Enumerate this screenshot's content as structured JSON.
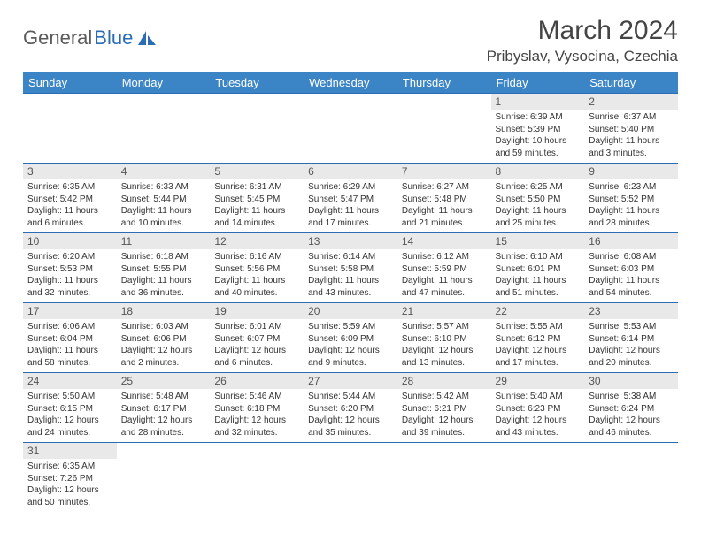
{
  "brand": {
    "text1": "General",
    "text2": "Blue"
  },
  "title": "March 2024",
  "location": "Pribyslav, Vysocina, Czechia",
  "colors": {
    "header_bg": "#3b85c6",
    "header_text": "#ffffff",
    "row_divider": "#2a6db5",
    "daynum_bg": "#e9e9e9",
    "brand_gray": "#5a5a5a",
    "brand_blue": "#2a6db5"
  },
  "dow": [
    "Sunday",
    "Monday",
    "Tuesday",
    "Wednesday",
    "Thursday",
    "Friday",
    "Saturday"
  ],
  "weeks": [
    [
      {
        "blank": true
      },
      {
        "blank": true
      },
      {
        "blank": true
      },
      {
        "blank": true
      },
      {
        "blank": true
      },
      {
        "n": "1",
        "sr": "Sunrise: 6:39 AM",
        "ss": "Sunset: 5:39 PM",
        "dl": "Daylight: 10 hours and 59 minutes."
      },
      {
        "n": "2",
        "sr": "Sunrise: 6:37 AM",
        "ss": "Sunset: 5:40 PM",
        "dl": "Daylight: 11 hours and 3 minutes."
      }
    ],
    [
      {
        "n": "3",
        "sr": "Sunrise: 6:35 AM",
        "ss": "Sunset: 5:42 PM",
        "dl": "Daylight: 11 hours and 6 minutes."
      },
      {
        "n": "4",
        "sr": "Sunrise: 6:33 AM",
        "ss": "Sunset: 5:44 PM",
        "dl": "Daylight: 11 hours and 10 minutes."
      },
      {
        "n": "5",
        "sr": "Sunrise: 6:31 AM",
        "ss": "Sunset: 5:45 PM",
        "dl": "Daylight: 11 hours and 14 minutes."
      },
      {
        "n": "6",
        "sr": "Sunrise: 6:29 AM",
        "ss": "Sunset: 5:47 PM",
        "dl": "Daylight: 11 hours and 17 minutes."
      },
      {
        "n": "7",
        "sr": "Sunrise: 6:27 AM",
        "ss": "Sunset: 5:48 PM",
        "dl": "Daylight: 11 hours and 21 minutes."
      },
      {
        "n": "8",
        "sr": "Sunrise: 6:25 AM",
        "ss": "Sunset: 5:50 PM",
        "dl": "Daylight: 11 hours and 25 minutes."
      },
      {
        "n": "9",
        "sr": "Sunrise: 6:23 AM",
        "ss": "Sunset: 5:52 PM",
        "dl": "Daylight: 11 hours and 28 minutes."
      }
    ],
    [
      {
        "n": "10",
        "sr": "Sunrise: 6:20 AM",
        "ss": "Sunset: 5:53 PM",
        "dl": "Daylight: 11 hours and 32 minutes."
      },
      {
        "n": "11",
        "sr": "Sunrise: 6:18 AM",
        "ss": "Sunset: 5:55 PM",
        "dl": "Daylight: 11 hours and 36 minutes."
      },
      {
        "n": "12",
        "sr": "Sunrise: 6:16 AM",
        "ss": "Sunset: 5:56 PM",
        "dl": "Daylight: 11 hours and 40 minutes."
      },
      {
        "n": "13",
        "sr": "Sunrise: 6:14 AM",
        "ss": "Sunset: 5:58 PM",
        "dl": "Daylight: 11 hours and 43 minutes."
      },
      {
        "n": "14",
        "sr": "Sunrise: 6:12 AM",
        "ss": "Sunset: 5:59 PM",
        "dl": "Daylight: 11 hours and 47 minutes."
      },
      {
        "n": "15",
        "sr": "Sunrise: 6:10 AM",
        "ss": "Sunset: 6:01 PM",
        "dl": "Daylight: 11 hours and 51 minutes."
      },
      {
        "n": "16",
        "sr": "Sunrise: 6:08 AM",
        "ss": "Sunset: 6:03 PM",
        "dl": "Daylight: 11 hours and 54 minutes."
      }
    ],
    [
      {
        "n": "17",
        "sr": "Sunrise: 6:06 AM",
        "ss": "Sunset: 6:04 PM",
        "dl": "Daylight: 11 hours and 58 minutes."
      },
      {
        "n": "18",
        "sr": "Sunrise: 6:03 AM",
        "ss": "Sunset: 6:06 PM",
        "dl": "Daylight: 12 hours and 2 minutes."
      },
      {
        "n": "19",
        "sr": "Sunrise: 6:01 AM",
        "ss": "Sunset: 6:07 PM",
        "dl": "Daylight: 12 hours and 6 minutes."
      },
      {
        "n": "20",
        "sr": "Sunrise: 5:59 AM",
        "ss": "Sunset: 6:09 PM",
        "dl": "Daylight: 12 hours and 9 minutes."
      },
      {
        "n": "21",
        "sr": "Sunrise: 5:57 AM",
        "ss": "Sunset: 6:10 PM",
        "dl": "Daylight: 12 hours and 13 minutes."
      },
      {
        "n": "22",
        "sr": "Sunrise: 5:55 AM",
        "ss": "Sunset: 6:12 PM",
        "dl": "Daylight: 12 hours and 17 minutes."
      },
      {
        "n": "23",
        "sr": "Sunrise: 5:53 AM",
        "ss": "Sunset: 6:14 PM",
        "dl": "Daylight: 12 hours and 20 minutes."
      }
    ],
    [
      {
        "n": "24",
        "sr": "Sunrise: 5:50 AM",
        "ss": "Sunset: 6:15 PM",
        "dl": "Daylight: 12 hours and 24 minutes."
      },
      {
        "n": "25",
        "sr": "Sunrise: 5:48 AM",
        "ss": "Sunset: 6:17 PM",
        "dl": "Daylight: 12 hours and 28 minutes."
      },
      {
        "n": "26",
        "sr": "Sunrise: 5:46 AM",
        "ss": "Sunset: 6:18 PM",
        "dl": "Daylight: 12 hours and 32 minutes."
      },
      {
        "n": "27",
        "sr": "Sunrise: 5:44 AM",
        "ss": "Sunset: 6:20 PM",
        "dl": "Daylight: 12 hours and 35 minutes."
      },
      {
        "n": "28",
        "sr": "Sunrise: 5:42 AM",
        "ss": "Sunset: 6:21 PM",
        "dl": "Daylight: 12 hours and 39 minutes."
      },
      {
        "n": "29",
        "sr": "Sunrise: 5:40 AM",
        "ss": "Sunset: 6:23 PM",
        "dl": "Daylight: 12 hours and 43 minutes."
      },
      {
        "n": "30",
        "sr": "Sunrise: 5:38 AM",
        "ss": "Sunset: 6:24 PM",
        "dl": "Daylight: 12 hours and 46 minutes."
      }
    ],
    [
      {
        "n": "31",
        "sr": "Sunrise: 6:35 AM",
        "ss": "Sunset: 7:26 PM",
        "dl": "Daylight: 12 hours and 50 minutes."
      },
      {
        "blank": true
      },
      {
        "blank": true
      },
      {
        "blank": true
      },
      {
        "blank": true
      },
      {
        "blank": true
      },
      {
        "blank": true
      }
    ]
  ]
}
